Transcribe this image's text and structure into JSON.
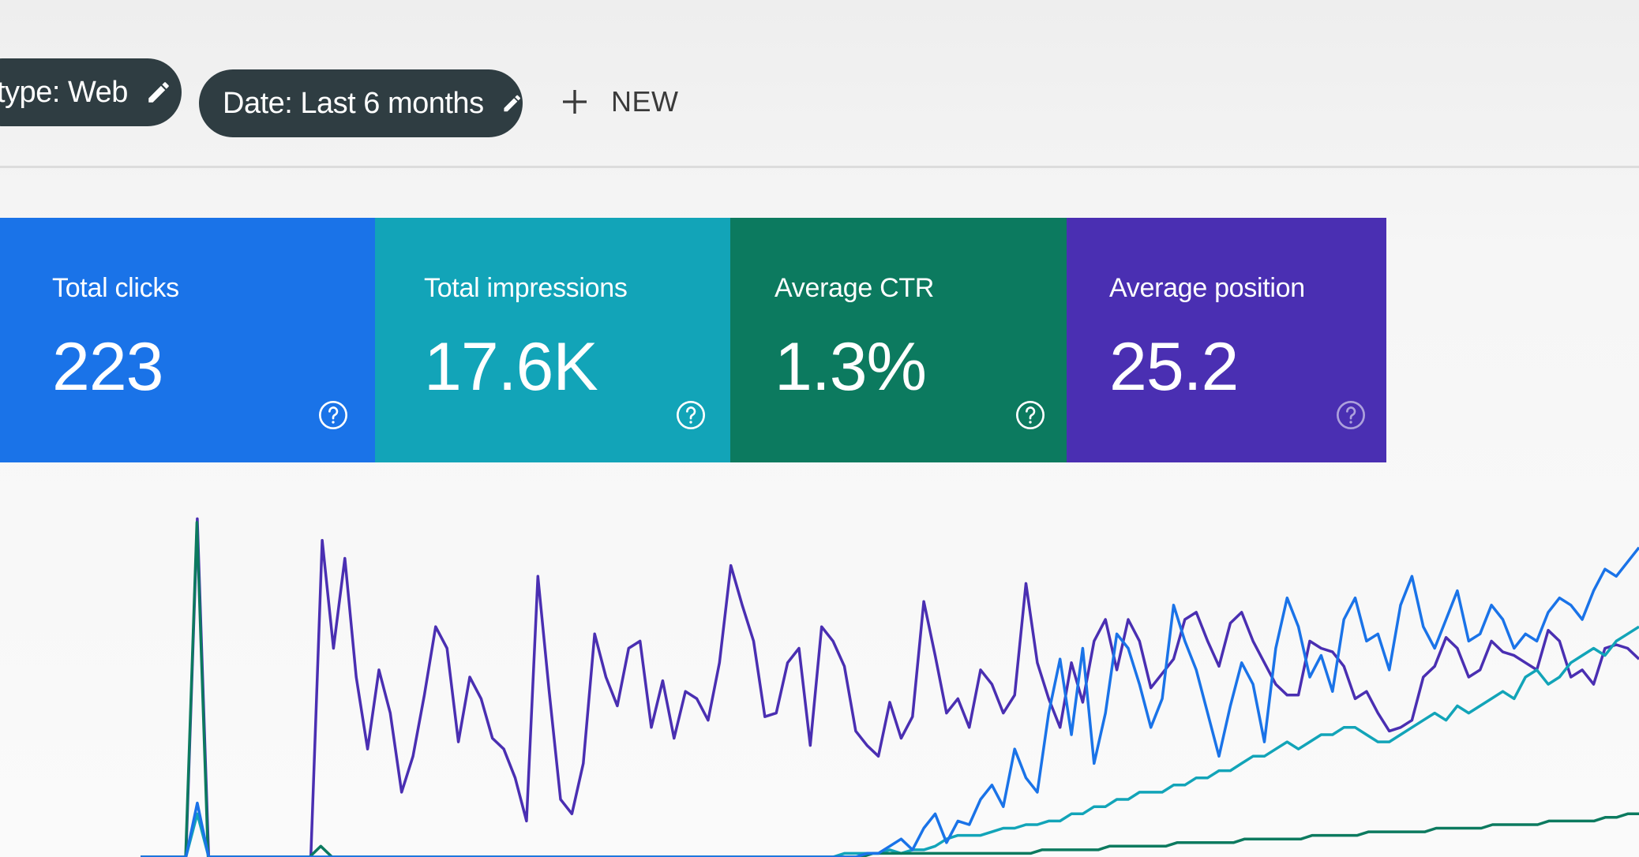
{
  "filters": {
    "chips": [
      {
        "label": "type: Web",
        "icon": "pencil-icon"
      },
      {
        "label": "Date: Last 6 months",
        "icon": "pencil-icon"
      }
    ],
    "new_label": "NEW"
  },
  "metrics": [
    {
      "title": "Total clicks",
      "value": "223",
      "color": "#1a73e8"
    },
    {
      "title": "Total impressions",
      "value": "17.6K",
      "color": "#12a4b8"
    },
    {
      "title": "Average CTR",
      "value": "1.3%",
      "color": "#0c7a5f"
    },
    {
      "title": "Average position",
      "value": "25.2",
      "color": "#4a2fb2"
    }
  ],
  "chart_data": {
    "type": "line",
    "grid": false,
    "series": [
      {
        "color": "#4a2fb2",
        "values": [
          0,
          0,
          0,
          0,
          0,
          94,
          0,
          0,
          0,
          0,
          0,
          0,
          0,
          0,
          0,
          0,
          88,
          58,
          83,
          50,
          30,
          52,
          40,
          18,
          28,
          45,
          64,
          58,
          32,
          50,
          44,
          33,
          30,
          22,
          10,
          78,
          46,
          16,
          12,
          26,
          62,
          50,
          42,
          58,
          60,
          36,
          49,
          33,
          46,
          44,
          38,
          54,
          81,
          70,
          60,
          39,
          40,
          54,
          58,
          31,
          64,
          60,
          53,
          35,
          31,
          28,
          43,
          33,
          39,
          71,
          56,
          40,
          44,
          36,
          52,
          48,
          40,
          45,
          76,
          54,
          44,
          36,
          54,
          43,
          60,
          66,
          52,
          66,
          60,
          47,
          51,
          55,
          66,
          68,
          60,
          53,
          65,
          68,
          60,
          54,
          48,
          45,
          45,
          60,
          58,
          57,
          53,
          44,
          46,
          40,
          35,
          36,
          38,
          50,
          53,
          61,
          58,
          50,
          52,
          60,
          57,
          56,
          54,
          52,
          63,
          60,
          50,
          52,
          48,
          58,
          59,
          58,
          55
        ]
      },
      {
        "color": "#12a4b8",
        "values": [
          0,
          0,
          0,
          0,
          0,
          12,
          0,
          0,
          0,
          0,
          0,
          0,
          0,
          0,
          0,
          0,
          0,
          0,
          0,
          0,
          0,
          0,
          0,
          0,
          0,
          0,
          0,
          0,
          0,
          0,
          0,
          0,
          0,
          0,
          0,
          0,
          0,
          0,
          0,
          0,
          0,
          0,
          0,
          0,
          0,
          0,
          0,
          0,
          0,
          0,
          0,
          0,
          0,
          0,
          0,
          0,
          0,
          0,
          0,
          0,
          0,
          0,
          1,
          1,
          1,
          1,
          2,
          1,
          2,
          2,
          3,
          5,
          6,
          6,
          6,
          7,
          8,
          8,
          9,
          9,
          10,
          10,
          12,
          12,
          14,
          14,
          16,
          16,
          18,
          18,
          18,
          20,
          20,
          22,
          22,
          24,
          24,
          26,
          28,
          28,
          30,
          32,
          30,
          32,
          34,
          34,
          36,
          36,
          34,
          32,
          32,
          34,
          36,
          38,
          40,
          38,
          42,
          40,
          42,
          44,
          46,
          44,
          50,
          52,
          48,
          50,
          54,
          56,
          58,
          56,
          60,
          62,
          64
        ]
      },
      {
        "color": "#0c7a5f",
        "values": [
          0,
          0,
          0,
          0,
          0,
          93,
          0,
          0,
          0,
          0,
          0,
          0,
          0,
          0,
          0,
          0,
          3,
          0,
          0,
          0,
          0,
          0,
          0,
          0,
          0,
          0,
          0,
          0,
          0,
          0,
          0,
          0,
          0,
          0,
          0,
          0,
          0,
          0,
          0,
          0,
          0,
          0,
          0,
          0,
          0,
          0,
          0,
          0,
          0,
          0,
          0,
          0,
          0,
          0,
          0,
          0,
          0,
          0,
          0,
          0,
          0,
          0,
          0,
          0,
          0,
          1,
          1,
          1,
          1,
          1,
          1,
          1,
          1,
          1,
          1,
          1,
          1,
          1,
          1,
          1,
          2,
          2,
          2,
          2,
          2,
          2,
          3,
          3,
          3,
          3,
          3,
          3,
          4,
          4,
          4,
          4,
          4,
          4,
          5,
          5,
          5,
          5,
          5,
          5,
          6,
          6,
          6,
          6,
          6,
          7,
          7,
          7,
          7,
          7,
          7,
          8,
          8,
          8,
          8,
          8,
          9,
          9,
          9,
          9,
          9,
          10,
          10,
          10,
          10,
          10,
          11,
          11,
          12,
          12
        ]
      },
      {
        "color": "#1a73e8",
        "values": [
          0,
          0,
          0,
          0,
          0,
          15,
          0,
          0,
          0,
          0,
          0,
          0,
          0,
          0,
          0,
          0,
          0,
          0,
          0,
          0,
          0,
          0,
          0,
          0,
          0,
          0,
          0,
          0,
          0,
          0,
          0,
          0,
          0,
          0,
          0,
          0,
          0,
          0,
          0,
          0,
          0,
          0,
          0,
          0,
          0,
          0,
          0,
          0,
          0,
          0,
          0,
          0,
          0,
          0,
          0,
          0,
          0,
          0,
          0,
          0,
          0,
          0,
          0,
          0,
          1,
          1,
          3,
          5,
          2,
          8,
          12,
          4,
          10,
          9,
          16,
          20,
          14,
          30,
          22,
          18,
          40,
          55,
          34,
          58,
          26,
          40,
          62,
          58,
          48,
          36,
          44,
          70,
          60,
          52,
          40,
          28,
          42,
          54,
          48,
          32,
          58,
          72,
          64,
          50,
          56,
          46,
          66,
          72,
          60,
          62,
          52,
          70,
          78,
          64,
          58,
          66,
          74,
          60,
          62,
          70,
          66,
          58,
          62,
          60,
          68,
          72,
          70,
          66,
          74,
          80,
          78,
          82,
          86
        ]
      }
    ]
  }
}
